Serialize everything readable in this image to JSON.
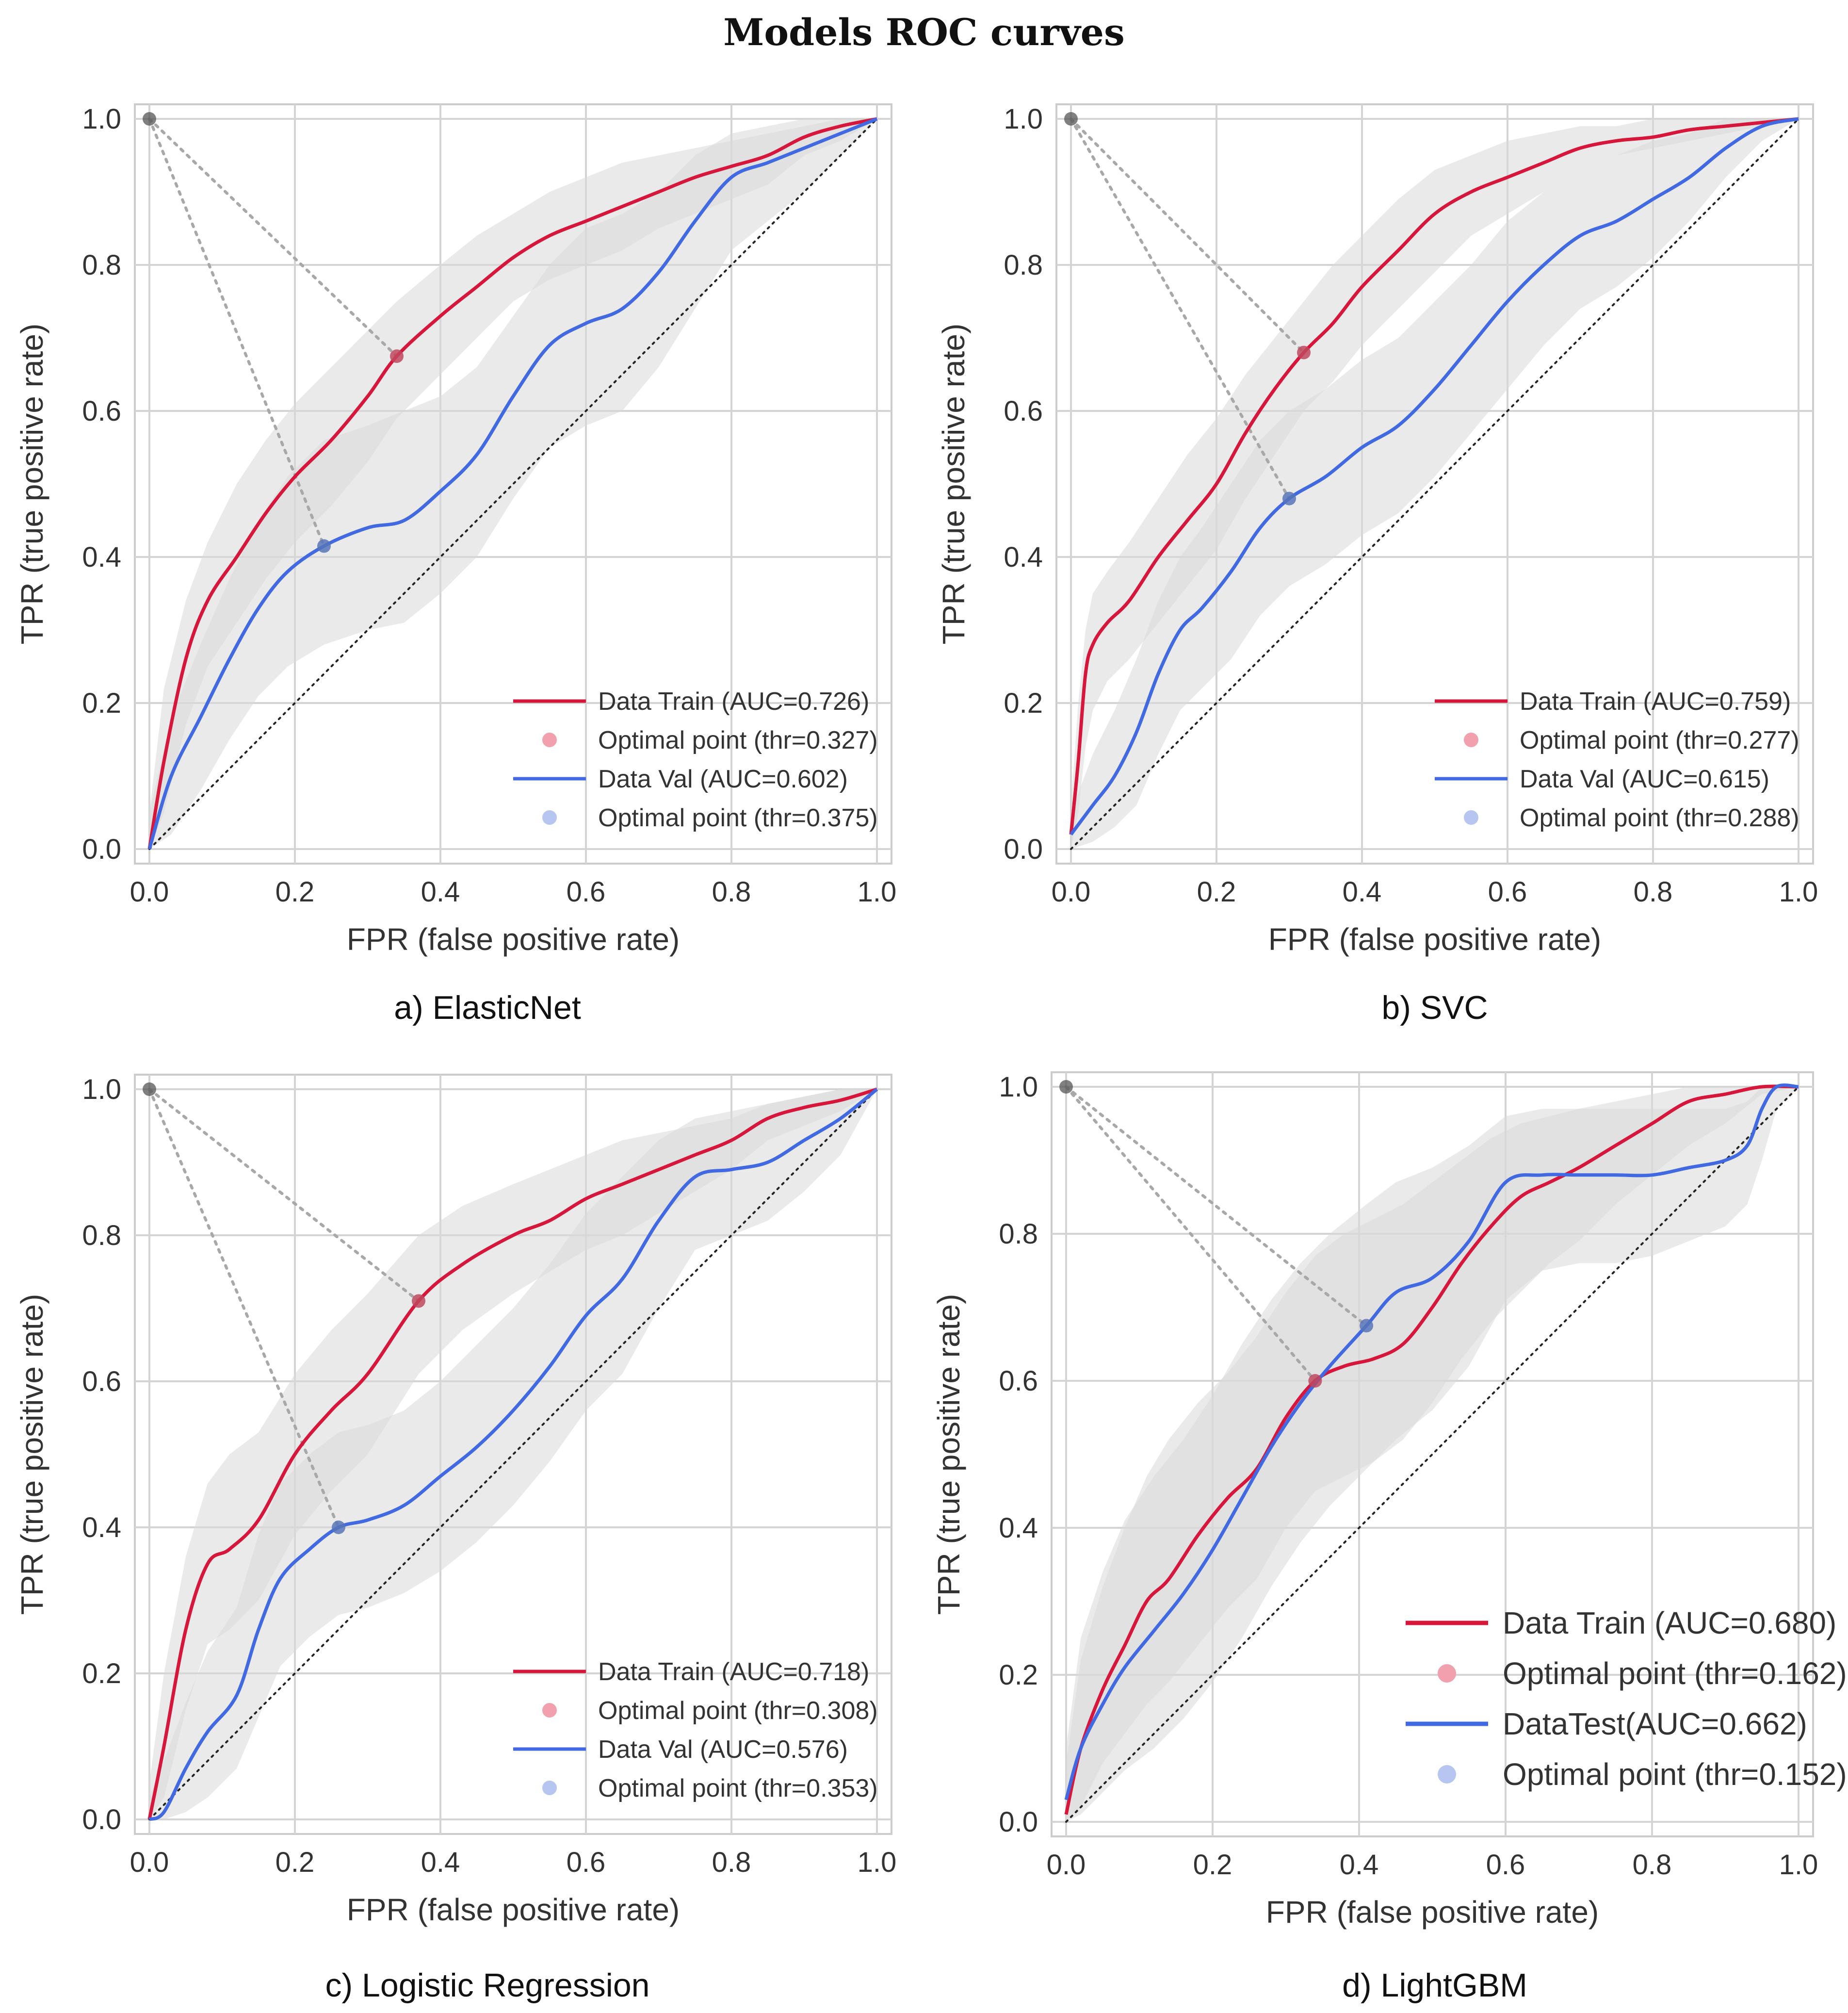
{
  "title": "Models ROC curves",
  "colors": {
    "train": "#d6163a",
    "val": "#4169e1",
    "train_point": "#f2a0ad",
    "val_point": "#b6c6f0",
    "band": "#d9d9d9",
    "band_dark": "#b8b8b8",
    "origin_point": "#555555"
  },
  "chart_data": [
    {
      "type": "line",
      "caption": "a) ElasticNet",
      "xlabel": "FPR (false positive rate)",
      "ylabel": "TPR (true positive rate)",
      "xlim": [
        0,
        1
      ],
      "ylim": [
        0,
        1
      ],
      "ticks": [
        "0.0",
        "0.2",
        "0.4",
        "0.6",
        "0.8",
        "1.0"
      ],
      "grid": true,
      "legend_position": "bottom-right",
      "series": [
        {
          "name": "Data Train (AUC=0.726)",
          "role": "train",
          "x": [
            0,
            0.02,
            0.05,
            0.08,
            0.12,
            0.16,
            0.2,
            0.25,
            0.3,
            0.34,
            0.4,
            0.45,
            0.5,
            0.55,
            0.6,
            0.65,
            0.7,
            0.75,
            0.8,
            0.85,
            0.9,
            0.95,
            1.0
          ],
          "y": [
            0,
            0.12,
            0.26,
            0.34,
            0.4,
            0.46,
            0.51,
            0.56,
            0.62,
            0.675,
            0.73,
            0.77,
            0.81,
            0.84,
            0.86,
            0.88,
            0.9,
            0.92,
            0.935,
            0.95,
            0.975,
            0.99,
            1.0
          ],
          "band_upper": [
            0.05,
            0.22,
            0.34,
            0.42,
            0.5,
            0.56,
            0.61,
            0.66,
            0.71,
            0.75,
            0.8,
            0.84,
            0.87,
            0.9,
            0.92,
            0.94,
            0.95,
            0.96,
            0.97,
            0.98,
            0.99,
            1.0,
            1.0
          ],
          "band_lower": [
            0,
            0.05,
            0.17,
            0.25,
            0.31,
            0.37,
            0.42,
            0.47,
            0.53,
            0.59,
            0.65,
            0.7,
            0.75,
            0.78,
            0.8,
            0.82,
            0.85,
            0.87,
            0.89,
            0.91,
            0.95,
            0.97,
            1.0
          ],
          "optimal_point": {
            "label": "Optimal point (thr=0.327)",
            "x": 0.34,
            "y": 0.675
          }
        },
        {
          "name": "Data Val (AUC=0.602)",
          "role": "val",
          "x": [
            0,
            0.03,
            0.07,
            0.11,
            0.15,
            0.19,
            0.24,
            0.3,
            0.35,
            0.4,
            0.45,
            0.5,
            0.55,
            0.6,
            0.65,
            0.7,
            0.75,
            0.8,
            0.85,
            0.9,
            0.95,
            1.0
          ],
          "y": [
            0,
            0.1,
            0.18,
            0.26,
            0.33,
            0.38,
            0.415,
            0.44,
            0.45,
            0.49,
            0.54,
            0.62,
            0.69,
            0.72,
            0.74,
            0.79,
            0.86,
            0.92,
            0.94,
            0.96,
            0.98,
            1.0
          ],
          "band_upper": [
            0.05,
            0.18,
            0.28,
            0.37,
            0.45,
            0.51,
            0.56,
            0.58,
            0.6,
            0.62,
            0.66,
            0.73,
            0.8,
            0.85,
            0.87,
            0.9,
            0.95,
            0.98,
            0.99,
            1.0,
            1.0,
            1.0
          ],
          "band_lower": [
            0,
            0.02,
            0.08,
            0.15,
            0.21,
            0.25,
            0.28,
            0.3,
            0.31,
            0.35,
            0.4,
            0.48,
            0.55,
            0.58,
            0.6,
            0.66,
            0.74,
            0.82,
            0.86,
            0.9,
            0.95,
            1.0
          ],
          "optimal_point": {
            "label": "Optimal point (thr=0.375)",
            "x": 0.24,
            "y": 0.415
          }
        }
      ]
    },
    {
      "type": "line",
      "caption": "b) SVC",
      "xlabel": "FPR (false positive rate)",
      "ylabel": "TPR (true positive rate)",
      "xlim": [
        0,
        1
      ],
      "ylim": [
        0,
        1
      ],
      "ticks": [
        "0.0",
        "0.2",
        "0.4",
        "0.6",
        "0.8",
        "1.0"
      ],
      "grid": true,
      "legend_position": "bottom-right",
      "series": [
        {
          "name": "Data Train (AUC=0.759)",
          "role": "train",
          "x": [
            0,
            0.01,
            0.02,
            0.03,
            0.05,
            0.08,
            0.12,
            0.16,
            0.2,
            0.24,
            0.28,
            0.32,
            0.36,
            0.4,
            0.45,
            0.5,
            0.55,
            0.6,
            0.65,
            0.7,
            0.75,
            0.8,
            0.85,
            0.9,
            0.95,
            1.0
          ],
          "y": [
            0.02,
            0.12,
            0.24,
            0.28,
            0.31,
            0.34,
            0.4,
            0.45,
            0.5,
            0.57,
            0.63,
            0.68,
            0.72,
            0.77,
            0.82,
            0.87,
            0.9,
            0.92,
            0.94,
            0.96,
            0.97,
            0.975,
            0.985,
            0.99,
            0.995,
            1.0
          ],
          "band_upper": [
            0.06,
            0.2,
            0.3,
            0.35,
            0.38,
            0.42,
            0.48,
            0.54,
            0.59,
            0.65,
            0.7,
            0.75,
            0.8,
            0.84,
            0.89,
            0.93,
            0.95,
            0.97,
            0.98,
            0.99,
            0.99,
            1.0,
            1.0,
            1.0,
            1.0,
            1.0
          ],
          "band_lower": [
            0,
            0.05,
            0.14,
            0.19,
            0.23,
            0.26,
            0.31,
            0.36,
            0.41,
            0.48,
            0.54,
            0.6,
            0.64,
            0.69,
            0.74,
            0.79,
            0.84,
            0.87,
            0.9,
            0.93,
            0.95,
            0.96,
            0.97,
            0.98,
            0.99,
            1.0
          ],
          "optimal_point": {
            "label": "Optimal point (thr=0.277)",
            "x": 0.32,
            "y": 0.68
          }
        },
        {
          "name": "Data Val (AUC=0.615)",
          "role": "val",
          "x": [
            0,
            0.03,
            0.06,
            0.09,
            0.12,
            0.15,
            0.18,
            0.22,
            0.26,
            0.3,
            0.35,
            0.4,
            0.45,
            0.5,
            0.55,
            0.6,
            0.65,
            0.7,
            0.75,
            0.8,
            0.85,
            0.9,
            0.95,
            1.0
          ],
          "y": [
            0.02,
            0.06,
            0.1,
            0.16,
            0.24,
            0.3,
            0.33,
            0.38,
            0.44,
            0.48,
            0.51,
            0.55,
            0.58,
            0.63,
            0.69,
            0.75,
            0.8,
            0.84,
            0.86,
            0.89,
            0.92,
            0.96,
            0.99,
            1.0
          ],
          "band_upper": [
            0.05,
            0.13,
            0.19,
            0.26,
            0.34,
            0.4,
            0.44,
            0.5,
            0.56,
            0.6,
            0.63,
            0.67,
            0.7,
            0.75,
            0.8,
            0.86,
            0.9,
            0.93,
            0.95,
            0.97,
            0.98,
            1.0,
            1.0,
            1.0
          ],
          "band_lower": [
            0,
            0.01,
            0.03,
            0.06,
            0.13,
            0.19,
            0.22,
            0.26,
            0.32,
            0.36,
            0.39,
            0.43,
            0.46,
            0.51,
            0.57,
            0.63,
            0.69,
            0.74,
            0.77,
            0.81,
            0.86,
            0.92,
            0.97,
            1.0
          ],
          "optimal_point": {
            "label": "Optimal point (thr=0.288)",
            "x": 0.3,
            "y": 0.48
          }
        }
      ]
    },
    {
      "type": "line",
      "caption": "c) Logistic Regression",
      "xlabel": "FPR (false positive rate)",
      "ylabel": "TPR (true positive rate)",
      "xlim": [
        0,
        1
      ],
      "ylim": [
        0,
        1
      ],
      "ticks": [
        "0.0",
        "0.2",
        "0.4",
        "0.6",
        "0.8",
        "1.0"
      ],
      "grid": true,
      "legend_position": "bottom-right",
      "series": [
        {
          "name": "Data Train (AUC=0.718)",
          "role": "train",
          "x": [
            0,
            0.02,
            0.05,
            0.08,
            0.11,
            0.15,
            0.2,
            0.25,
            0.3,
            0.37,
            0.43,
            0.5,
            0.55,
            0.6,
            0.65,
            0.7,
            0.75,
            0.8,
            0.85,
            0.9,
            0.95,
            1.0
          ],
          "y": [
            0,
            0.1,
            0.26,
            0.35,
            0.37,
            0.41,
            0.5,
            0.56,
            0.61,
            0.71,
            0.76,
            0.8,
            0.82,
            0.85,
            0.87,
            0.89,
            0.91,
            0.93,
            0.96,
            0.975,
            0.985,
            1.0
          ],
          "band_upper": [
            0.05,
            0.2,
            0.36,
            0.46,
            0.5,
            0.53,
            0.61,
            0.67,
            0.72,
            0.8,
            0.84,
            0.87,
            0.89,
            0.91,
            0.93,
            0.94,
            0.95,
            0.96,
            0.98,
            0.99,
            1.0,
            1.0
          ],
          "band_lower": [
            0,
            0.03,
            0.15,
            0.24,
            0.26,
            0.3,
            0.39,
            0.45,
            0.5,
            0.61,
            0.67,
            0.72,
            0.75,
            0.78,
            0.8,
            0.83,
            0.86,
            0.89,
            0.93,
            0.95,
            0.97,
            1.0
          ],
          "optimal_point": {
            "label": "Optimal point (thr=0.308)",
            "x": 0.37,
            "y": 0.71
          }
        },
        {
          "name": "Data Val (AUC=0.576)",
          "role": "val",
          "x": [
            0,
            0.02,
            0.05,
            0.08,
            0.12,
            0.15,
            0.18,
            0.22,
            0.26,
            0.3,
            0.35,
            0.4,
            0.45,
            0.5,
            0.55,
            0.6,
            0.65,
            0.7,
            0.75,
            0.8,
            0.85,
            0.9,
            0.95,
            1.0
          ],
          "y": [
            0,
            0.01,
            0.07,
            0.12,
            0.17,
            0.26,
            0.33,
            0.37,
            0.4,
            0.41,
            0.43,
            0.47,
            0.51,
            0.56,
            0.62,
            0.69,
            0.74,
            0.82,
            0.88,
            0.89,
            0.9,
            0.93,
            0.96,
            1.0
          ],
          "band_upper": [
            0.03,
            0.08,
            0.16,
            0.23,
            0.29,
            0.39,
            0.46,
            0.5,
            0.53,
            0.54,
            0.56,
            0.6,
            0.65,
            0.7,
            0.76,
            0.83,
            0.88,
            0.93,
            0.96,
            0.97,
            0.98,
            0.99,
            1.0,
            1.0
          ],
          "band_lower": [
            0,
            0,
            0.01,
            0.03,
            0.07,
            0.14,
            0.21,
            0.25,
            0.28,
            0.29,
            0.31,
            0.34,
            0.38,
            0.43,
            0.49,
            0.56,
            0.61,
            0.7,
            0.78,
            0.8,
            0.82,
            0.86,
            0.91,
            1.0
          ],
          "optimal_point": {
            "label": "Optimal point (thr=0.353)",
            "x": 0.26,
            "y": 0.4
          }
        }
      ]
    },
    {
      "type": "line",
      "caption": "d) LightGBM",
      "xlabel": "FPR (false positive rate)",
      "ylabel": "TPR (true positive rate)",
      "xlim": [
        0,
        1
      ],
      "ylim": [
        0,
        1
      ],
      "ticks": [
        "0.0",
        "0.2",
        "0.4",
        "0.6",
        "0.8",
        "1.0"
      ],
      "grid": true,
      "legend_position": "bottom-right",
      "series": [
        {
          "name": "Data Train (AUC=0.680)",
          "role": "train",
          "x": [
            0,
            0.02,
            0.05,
            0.08,
            0.11,
            0.14,
            0.18,
            0.22,
            0.26,
            0.3,
            0.34,
            0.38,
            0.42,
            0.46,
            0.5,
            0.54,
            0.58,
            0.62,
            0.66,
            0.7,
            0.75,
            0.8,
            0.85,
            0.9,
            0.95,
            1.0
          ],
          "y": [
            0.01,
            0.1,
            0.18,
            0.24,
            0.3,
            0.33,
            0.39,
            0.44,
            0.48,
            0.55,
            0.6,
            0.62,
            0.63,
            0.65,
            0.7,
            0.76,
            0.81,
            0.85,
            0.87,
            0.89,
            0.92,
            0.95,
            0.98,
            0.99,
            1.0,
            1.0
          ],
          "band_upper": [
            0.08,
            0.22,
            0.32,
            0.4,
            0.47,
            0.52,
            0.57,
            0.61,
            0.66,
            0.72,
            0.77,
            0.8,
            0.82,
            0.84,
            0.87,
            0.9,
            0.93,
            0.95,
            0.96,
            0.97,
            0.98,
            0.99,
            1.0,
            1.0,
            1.0,
            1.0
          ],
          "band_lower": [
            0,
            0.02,
            0.08,
            0.12,
            0.16,
            0.19,
            0.24,
            0.29,
            0.33,
            0.4,
            0.45,
            0.47,
            0.49,
            0.52,
            0.57,
            0.63,
            0.68,
            0.72,
            0.76,
            0.79,
            0.84,
            0.88,
            0.92,
            0.95,
            0.99,
            1.0
          ],
          "optimal_point": {
            "label": "Optimal point (thr=0.162)",
            "x": 0.34,
            "y": 0.6
          }
        },
        {
          "name": "DataTest(AUC=0.662)",
          "role": "val",
          "x": [
            0,
            0.02,
            0.05,
            0.08,
            0.12,
            0.16,
            0.2,
            0.24,
            0.28,
            0.32,
            0.36,
            0.41,
            0.45,
            0.5,
            0.55,
            0.6,
            0.65,
            0.7,
            0.75,
            0.8,
            0.85,
            0.9,
            0.93,
            0.95,
            0.97,
            1.0
          ],
          "y": [
            0.03,
            0.1,
            0.16,
            0.21,
            0.26,
            0.31,
            0.37,
            0.44,
            0.51,
            0.57,
            0.62,
            0.675,
            0.72,
            0.74,
            0.79,
            0.87,
            0.88,
            0.88,
            0.88,
            0.88,
            0.89,
            0.9,
            0.92,
            0.97,
            1.0,
            1.0
          ],
          "band_upper": [
            0.1,
            0.25,
            0.34,
            0.41,
            0.47,
            0.52,
            0.58,
            0.65,
            0.71,
            0.76,
            0.8,
            0.84,
            0.87,
            0.89,
            0.92,
            0.96,
            0.97,
            0.97,
            0.97,
            0.97,
            0.97,
            0.97,
            0.98,
            1.0,
            1.0,
            1.0
          ],
          "band_lower": [
            0,
            0.01,
            0.04,
            0.07,
            0.1,
            0.14,
            0.19,
            0.25,
            0.32,
            0.38,
            0.43,
            0.48,
            0.52,
            0.56,
            0.62,
            0.71,
            0.75,
            0.76,
            0.76,
            0.77,
            0.79,
            0.81,
            0.84,
            0.9,
            0.97,
            1.0
          ],
          "optimal_point": {
            "label": "Optimal point (thr=0.152)",
            "x": 0.41,
            "y": 0.675
          }
        }
      ]
    }
  ]
}
